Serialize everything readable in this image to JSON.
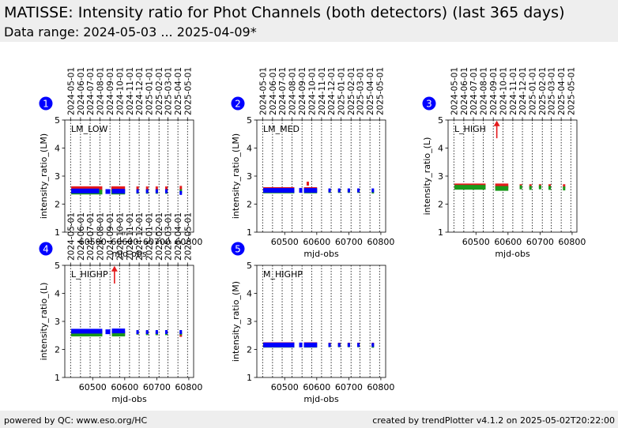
{
  "header": {
    "title": "MATISSE: Intensity ratio for Phot Channels (both detectors) (last 365 days)",
    "subtitle": "Data range: 2024-05-03 ... 2025-04-09*"
  },
  "footer": {
    "left": "powered by QC: www.eso.org/HC",
    "right": "created by trendPlotter v4.1.2 on 2025-05-02T20:22:00"
  },
  "colors": {
    "red": "#e41a1c",
    "green": "#1a9a1a",
    "blue": "#0000ff",
    "badge": "#0000ff"
  },
  "chart_data": [
    {
      "type": "scatter",
      "panel": "1",
      "label": "LM_LOW",
      "xlabel": "mjd-obs",
      "ylabel": "intensity_ratio_(LM)",
      "xlim": [
        60413,
        60815
      ],
      "ylim": [
        1,
        5
      ],
      "xticks": [
        60500,
        60600,
        60700,
        60800
      ],
      "yticks": [
        1,
        2,
        3,
        4,
        5
      ],
      "date_ticks": [
        "2024-05-01",
        "2024-06-01",
        "2024-07-01",
        "2024-08-01",
        "2024-09-01",
        "2024-10-01",
        "2024-11-01",
        "2024-12-01",
        "2025-01-01",
        "2025-02-01",
        "2025-03-01",
        "2025-04-01",
        "2025-05-01"
      ],
      "date_mjd": [
        60431,
        60462,
        60492,
        60523,
        60554,
        60584,
        60615,
        60645,
        60676,
        60707,
        60735,
        60766,
        60796
      ],
      "series": [
        {
          "color": "red",
          "segments": [
            [
              60433,
              60530,
              2.55
            ],
            [
              60558,
              60601,
              2.55
            ]
          ],
          "points": [
            [
              60640,
              2.56
            ],
            [
              60670,
              2.56
            ],
            [
              60700,
              2.56
            ],
            [
              60730,
              2.56
            ],
            [
              60775,
              2.58
            ]
          ]
        },
        {
          "color": "green",
          "segments": [
            [
              60433,
              60530,
              2.43
            ],
            [
              60558,
              60601,
              2.43
            ]
          ],
          "points": [
            [
              60640,
              2.44
            ],
            [
              60670,
              2.44
            ],
            [
              60700,
              2.44
            ],
            [
              60730,
              2.44
            ],
            [
              60775,
              2.46
            ]
          ]
        },
        {
          "color": "blue",
          "segments": [
            [
              60433,
              60520,
              2.47
            ],
            [
              60540,
              60555,
              2.45
            ],
            [
              60560,
              60601,
              2.46
            ]
          ],
          "points": [
            [
              60640,
              2.46
            ],
            [
              60670,
              2.46
            ],
            [
              60700,
              2.46
            ],
            [
              60730,
              2.46
            ],
            [
              60775,
              2.4
            ]
          ]
        }
      ],
      "arrow": null
    },
    {
      "type": "scatter",
      "panel": "2",
      "label": "LM_MED",
      "xlabel": "mjd-obs",
      "ylabel": "intensity_ratio_(LM)",
      "xlim": [
        60413,
        60815
      ],
      "ylim": [
        1,
        5
      ],
      "xticks": [
        60500,
        60600,
        60700,
        60800
      ],
      "yticks": [
        1,
        2,
        3,
        4,
        5
      ],
      "date_ticks": [
        "2024-05-01",
        "2024-06-01",
        "2024-07-01",
        "2024-08-01",
        "2024-09-01",
        "2024-10-01",
        "2024-11-01",
        "2024-12-01",
        "2025-01-01",
        "2025-02-01",
        "2025-03-01",
        "2025-04-01",
        "2025-05-01"
      ],
      "date_mjd": [
        60431,
        60462,
        60492,
        60523,
        60554,
        60584,
        60615,
        60645,
        60676,
        60707,
        60735,
        60766,
        60796
      ],
      "series": [
        {
          "color": "red",
          "segments": [
            [
              60433,
              60530,
              2.52
            ],
            [
              60560,
              60601,
              2.52
            ]
          ],
          "points": [
            [
              60572,
              2.73
            ]
          ]
        },
        {
          "color": "green",
          "segments": [
            [
              60433,
              60530,
              2.47
            ],
            [
              60560,
              60601,
              2.47
            ]
          ],
          "points": [
            [
              60640,
              2.47
            ],
            [
              60670,
              2.47
            ],
            [
              60700,
              2.47
            ],
            [
              60730,
              2.47
            ],
            [
              60775,
              2.45
            ]
          ]
        },
        {
          "color": "blue",
          "segments": [
            [
              60433,
              60530,
              2.49
            ],
            [
              60545,
              60555,
              2.49
            ],
            [
              60560,
              60601,
              2.49
            ]
          ],
          "points": [
            [
              60640,
              2.49
            ],
            [
              60670,
              2.49
            ],
            [
              60700,
              2.49
            ],
            [
              60730,
              2.49
            ],
            [
              60775,
              2.49
            ]
          ]
        }
      ],
      "arrow": null
    },
    {
      "type": "scatter",
      "panel": "3",
      "label": "L_HIGH",
      "xlabel": "mjd-obs",
      "ylabel": "intensity_ratio_(L)",
      "xlim": [
        60413,
        60815
      ],
      "ylim": [
        1,
        5
      ],
      "xticks": [
        60500,
        60600,
        60700,
        60800
      ],
      "yticks": [
        1,
        2,
        3,
        4,
        5
      ],
      "date_ticks": [
        "2024-05-01",
        "2024-06-01",
        "2024-07-01",
        "2024-08-01",
        "2024-09-01",
        "2024-10-01",
        "2024-11-01",
        "2024-12-01",
        "2025-01-01",
        "2025-02-01",
        "2025-03-01",
        "2025-04-01",
        "2025-05-01"
      ],
      "date_mjd": [
        60431,
        60462,
        60492,
        60523,
        60554,
        60584,
        60615,
        60645,
        60676,
        60707,
        60735,
        60766,
        60796
      ],
      "series": [
        {
          "color": "red",
          "segments": [
            [
              60433,
              60530,
              2.65
            ],
            [
              60560,
              60601,
              2.65
            ]
          ],
          "points": [
            [
              60640,
              2.64
            ],
            [
              60670,
              2.64
            ],
            [
              60700,
              2.64
            ],
            [
              60730,
              2.64
            ],
            [
              60775,
              2.64
            ]
          ]
        },
        {
          "color": "green",
          "segments": [
            [
              60433,
              60530,
              2.6
            ],
            [
              60560,
              60601,
              2.56
            ]
          ],
          "points": [
            [
              60640,
              2.6
            ],
            [
              60670,
              2.58
            ],
            [
              60700,
              2.6
            ],
            [
              60730,
              2.58
            ],
            [
              60775,
              2.56
            ]
          ]
        }
      ],
      "arrow": {
        "x": 60565,
        "y_from": 4.35,
        "y_to": 4.98
      }
    },
    {
      "type": "scatter",
      "panel": "4",
      "label": "L_HIGHP",
      "xlabel": "mjd-obs",
      "ylabel": "intensity_ratio_(L)",
      "xlim": [
        60413,
        60815
      ],
      "ylim": [
        1,
        5
      ],
      "xticks": [
        60500,
        60600,
        60700,
        60800
      ],
      "yticks": [
        1,
        2,
        3,
        4,
        5
      ],
      "date_ticks": [
        "2024-05-01",
        "2024-06-01",
        "2024-07-01",
        "2024-08-01",
        "2024-09-01",
        "2024-10-01",
        "2024-11-01",
        "2024-12-01",
        "2025-01-01",
        "2025-02-01",
        "2025-03-01",
        "2025-04-01",
        "2025-05-01"
      ],
      "date_mjd": [
        60431,
        60462,
        60492,
        60523,
        60554,
        60584,
        60615,
        60645,
        60676,
        60707,
        60735,
        60766,
        60796
      ],
      "series": [
        {
          "color": "red",
          "segments": [
            [
              60433,
              60530,
              2.58
            ],
            [
              60560,
              60601,
              2.58
            ]
          ],
          "points": [
            [
              60640,
              2.6
            ],
            [
              60670,
              2.6
            ],
            [
              60700,
              2.58
            ],
            [
              60730,
              2.6
            ],
            [
              60775,
              2.52
            ]
          ]
        },
        {
          "color": "green",
          "segments": [
            [
              60433,
              60530,
              2.55
            ],
            [
              60560,
              60601,
              2.55
            ]
          ],
          "points": [
            [
              60640,
              2.6
            ],
            [
              60670,
              2.58
            ],
            [
              60700,
              2.58
            ],
            [
              60730,
              2.58
            ],
            [
              60775,
              2.58
            ]
          ]
        },
        {
          "color": "blue",
          "segments": [
            [
              60433,
              60530,
              2.65
            ],
            [
              60540,
              60555,
              2.63
            ],
            [
              60560,
              60601,
              2.66
            ]
          ],
          "points": [
            [
              60640,
              2.62
            ],
            [
              60670,
              2.62
            ],
            [
              60700,
              2.62
            ],
            [
              60730,
              2.62
            ],
            [
              60775,
              2.62
            ]
          ]
        }
      ],
      "arrow": {
        "x": 60568,
        "y_from": 4.35,
        "y_to": 4.98
      }
    },
    {
      "type": "scatter",
      "panel": "5",
      "label": "M_HIGHP",
      "xlabel": "mjd-obs",
      "ylabel": "intensity_ratio_(M)",
      "xlim": [
        60413,
        60815
      ],
      "ylim": [
        1,
        5
      ],
      "xticks": [
        60500,
        60600,
        60700,
        60800
      ],
      "yticks": [
        1,
        2,
        3,
        4,
        5
      ],
      "date_ticks": [],
      "date_mjd": [
        60431,
        60462,
        60492,
        60523,
        60554,
        60584,
        60615,
        60645,
        60676,
        60707,
        60735,
        60766,
        60796
      ],
      "series": [
        {
          "color": "red",
          "segments": [
            [
              60433,
              60530,
              2.17
            ],
            [
              60560,
              60601,
              2.17
            ]
          ],
          "points": [
            [
              60640,
              2.17
            ],
            [
              60670,
              2.17
            ],
            [
              60700,
              2.17
            ],
            [
              60730,
              2.17
            ],
            [
              60775,
              2.17
            ]
          ]
        },
        {
          "color": "green",
          "segments": [
            [
              60433,
              60530,
              2.15
            ],
            [
              60560,
              60601,
              2.15
            ]
          ],
          "points": [
            [
              60640,
              2.15
            ],
            [
              60670,
              2.15
            ],
            [
              60700,
              2.15
            ],
            [
              60730,
              2.15
            ],
            [
              60775,
              2.13
            ]
          ]
        },
        {
          "color": "blue",
          "segments": [
            [
              60433,
              60530,
              2.16
            ],
            [
              60545,
              60555,
              2.16
            ],
            [
              60560,
              60601,
              2.16
            ]
          ],
          "points": [
            [
              60640,
              2.16
            ],
            [
              60670,
              2.16
            ],
            [
              60700,
              2.16
            ],
            [
              60730,
              2.16
            ],
            [
              60775,
              2.16
            ]
          ]
        }
      ],
      "arrow": null
    }
  ]
}
